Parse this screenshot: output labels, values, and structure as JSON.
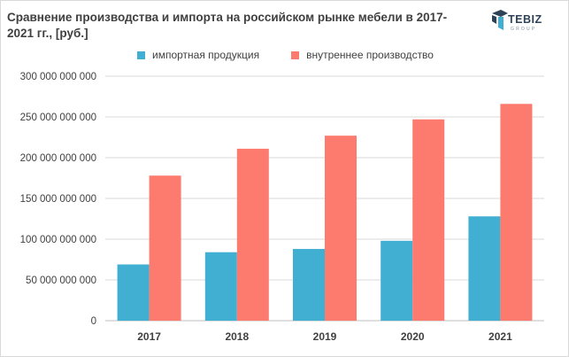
{
  "title": "Сравнение производства и импорта на российском рынке мебели в 2017-2021 гг., [руб.]",
  "logo": {
    "name": "TEBIZ",
    "sub": "GROUP"
  },
  "colors": {
    "import": "#40afd1",
    "domestic": "#fd7a6e",
    "grid": "#d9d9d9",
    "axis_text": "#404040"
  },
  "chart_data": {
    "type": "bar",
    "title": "Сравнение производства и импорта на российском рынке мебели в 2017-2021 гг., [руб.]",
    "categories": [
      "2017",
      "2018",
      "2019",
      "2020",
      "2021"
    ],
    "series": [
      {
        "name": "импортная продукция",
        "color": "#40afd1",
        "values": [
          69000000000,
          84000000000,
          88000000000,
          98000000000,
          128000000000
        ]
      },
      {
        "name": "внутреннее производство",
        "color": "#fd7a6e",
        "values": [
          178000000000,
          211000000000,
          227000000000,
          247000000000,
          266000000000
        ]
      }
    ],
    "ylim": [
      0,
      300000000000
    ],
    "yticks": [
      0,
      50000000000,
      100000000000,
      150000000000,
      200000000000,
      250000000000,
      300000000000
    ],
    "ytick_labels": [
      "0",
      "50 000 000 000",
      "100 000 000 000",
      "150 000 000 000",
      "200 000 000 000",
      "250 000 000 000",
      "300 000 000 000"
    ],
    "legend_position": "top",
    "grid": true
  }
}
